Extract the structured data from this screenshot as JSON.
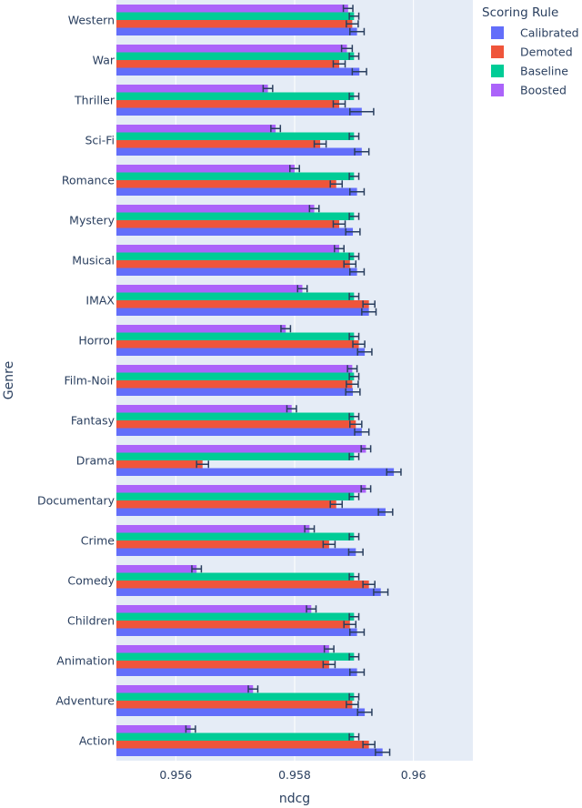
{
  "chart_data": {
    "type": "bar",
    "orientation": "horizontal",
    "xlabel": "ndcg",
    "ylabel": "Genre",
    "xlim": [
      0.955,
      0.961
    ],
    "x_ticks": [
      0.956,
      0.958,
      0.96
    ],
    "x_tick_labels": [
      "0.956",
      "0.958",
      "0.96"
    ],
    "grid": true,
    "legend_title": "Scoring Rule",
    "legend_position": "top-right",
    "categories": [
      "Western",
      "War",
      "Thriller",
      "Sci-Fi",
      "Romance",
      "Mystery",
      "Musical",
      "IMAX",
      "Horror",
      "Film-Noir",
      "Fantasy",
      "Drama",
      "Documentary",
      "Crime",
      "Comedy",
      "Children",
      "Animation",
      "Adventure",
      "Action"
    ],
    "series": [
      {
        "name": "Calibrated",
        "color": "#636efa",
        "values": [
          0.95905,
          0.95909,
          0.95913,
          0.95913,
          0.95905,
          0.95898,
          0.95905,
          0.95925,
          0.95918,
          0.95898,
          0.95913,
          0.95967,
          0.95953,
          0.95903,
          0.95945,
          0.95905,
          0.95905,
          0.95918,
          0.95948
        ],
        "error": [
          0.00012,
          0.00012,
          0.0002,
          0.00012,
          0.00012,
          0.00012,
          0.00012,
          0.00012,
          0.00012,
          0.00012,
          0.00012,
          0.00012,
          0.00012,
          0.00012,
          0.00012,
          0.00012,
          0.00012,
          0.00012,
          0.00012
        ]
      },
      {
        "name": "Demoted",
        "color": "#ef553b",
        "values": [
          0.95897,
          0.95875,
          0.95875,
          0.95843,
          0.9587,
          0.95875,
          0.95893,
          0.95925,
          0.95908,
          0.95897,
          0.95903,
          0.95645,
          0.9587,
          0.95858,
          0.95925,
          0.95893,
          0.95858,
          0.95897,
          0.95925
        ],
        "error": [
          0.0001,
          0.0001,
          0.0001,
          0.0001,
          0.0001,
          0.0001,
          0.0001,
          0.0001,
          0.0001,
          0.0001,
          0.0001,
          0.0001,
          0.0001,
          0.0001,
          0.0001,
          0.0001,
          0.0001,
          0.0001,
          0.0001
        ]
      },
      {
        "name": "Baseline",
        "color": "#00cc96",
        "values": [
          0.959,
          0.959,
          0.959,
          0.959,
          0.959,
          0.959,
          0.959,
          0.959,
          0.959,
          0.959,
          0.959,
          0.959,
          0.959,
          0.959,
          0.959,
          0.959,
          0.959,
          0.959,
          0.959
        ],
        "error": [
          8e-05,
          8e-05,
          8e-05,
          8e-05,
          8e-05,
          8e-05,
          8e-05,
          8e-05,
          8e-05,
          8e-05,
          8e-05,
          8e-05,
          8e-05,
          8e-05,
          8e-05,
          8e-05,
          8e-05,
          8e-05,
          8e-05
        ]
      },
      {
        "name": "Boosted",
        "color": "#ab63fa",
        "values": [
          0.9589,
          0.95888,
          0.95755,
          0.95768,
          0.958,
          0.95833,
          0.95875,
          0.95813,
          0.95785,
          0.95897,
          0.95795,
          0.9592,
          0.9592,
          0.95825,
          0.95635,
          0.95828,
          0.95858,
          0.9573,
          0.95625
        ],
        "error": [
          8e-05,
          9e-05,
          8e-05,
          8e-05,
          8e-05,
          8e-05,
          8e-05,
          8e-05,
          8e-05,
          8e-05,
          8e-05,
          8e-05,
          8e-05,
          8e-05,
          8e-05,
          8e-05,
          8e-05,
          8e-05,
          8e-05
        ]
      }
    ]
  }
}
